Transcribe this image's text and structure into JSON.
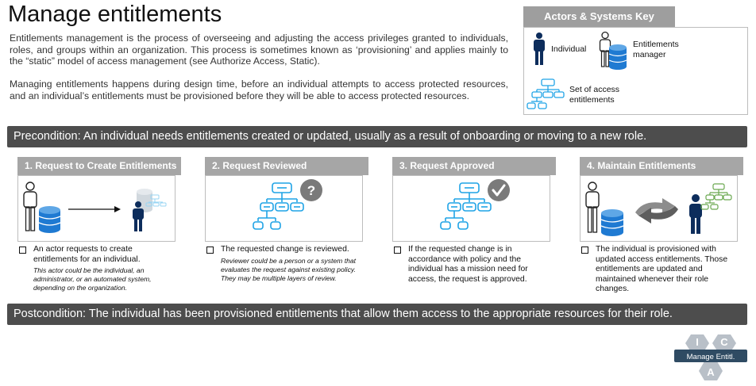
{
  "title": "Manage entitlements",
  "intro": [
    "Entitlements management is the process of overseeing and adjusting the access privileges granted to individuals, roles, and groups within an organization. This process is sometimes known as ‘provisioning’ and applies mainly to the “static” model of access management (see Authorize Access, Static).",
    "Managing entitlements happens during design time, before an individual attempts to access protected resources, and an individual’s entitlements must be provisioned before they will be able to access protected resources."
  ],
  "key": {
    "title": "Actors & Systems Key",
    "individual": "Individual",
    "manager": "Entitlements manager",
    "set": "Set of access entitlements"
  },
  "precondition": "Precondition: An individual needs entitlements created or updated, usually as a result of onboarding or moving to a new role.",
  "postcondition": "Postcondition: The individual has been provisioned entitlements that allow them access to the appropriate resources for their role.",
  "steps": [
    {
      "title": "1. Request to Create Entitlements",
      "text": "An actor requests to create entitlements for an individual.",
      "note": "This actor could be the individual, an administrator, or an automated system, depending on the organization."
    },
    {
      "title": "2. Request Reviewed",
      "text": "The requested change is reviewed.",
      "note": "Reviewer could be a person or a system that evaluates the request against existing policy. They may be multiple layers of review."
    },
    {
      "title": "3. Request Approved",
      "text": "If the requested change is in accordance with policy and the individual has a mission need for access, the request is approved.",
      "note": ""
    },
    {
      "title": "4. Maintain Entitlements",
      "text": "The individual is provisioned with updated access entitlements. Those entitlements are updated and maintained whenever their role changes.",
      "note": ""
    }
  ],
  "badge": {
    "i": "I",
    "c": "C",
    "a": "A",
    "label": "Manage Entitl."
  },
  "colors": {
    "navy": "#0d2d5c",
    "blue": "#1f7ad2",
    "light_blue": "#1fa3e6",
    "gray": "#7a7a7a",
    "green": "#6aa84f"
  }
}
